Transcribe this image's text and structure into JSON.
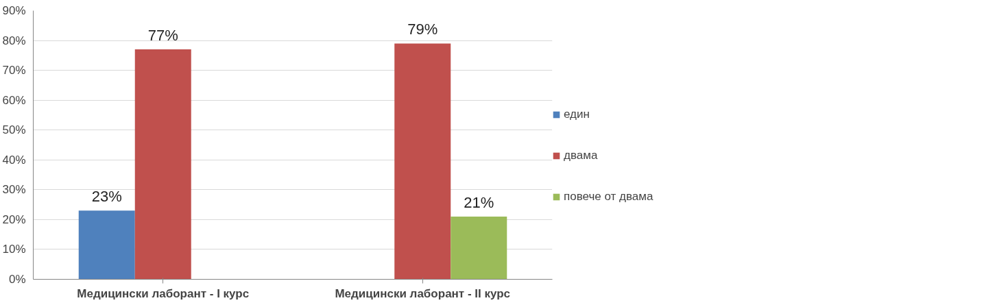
{
  "chart_data": {
    "type": "bar",
    "categories": [
      "Медицински лаборант - I курс",
      "Медицински лаборант - II курс"
    ],
    "series": [
      {
        "name": "един",
        "color": "#4f81bd",
        "values": [
          23,
          null
        ]
      },
      {
        "name": "двама",
        "color": "#c0504d",
        "values": [
          77,
          79
        ]
      },
      {
        "name": "повече от двама",
        "color": "#9bbb59",
        "values": [
          null,
          21
        ]
      }
    ],
    "ylim": [
      0,
      90
    ],
    "yticks": [
      {
        "value": 0,
        "label": "0%"
      },
      {
        "value": 10,
        "label": "10%"
      },
      {
        "value": 20,
        "label": "20%"
      },
      {
        "value": 30,
        "label": "30%"
      },
      {
        "value": 40,
        "label": "40%"
      },
      {
        "value": 50,
        "label": "50%"
      },
      {
        "value": 60,
        "label": "60%"
      },
      {
        "value": 70,
        "label": "70%"
      },
      {
        "value": 80,
        "label": "80%"
      },
      {
        "value": 90,
        "label": "90%"
      }
    ],
    "value_labels": [
      [
        "23%",
        null
      ],
      [
        "77%",
        "79%"
      ],
      [
        null,
        "21%"
      ]
    ],
    "grid": "y",
    "legend": "right"
  }
}
